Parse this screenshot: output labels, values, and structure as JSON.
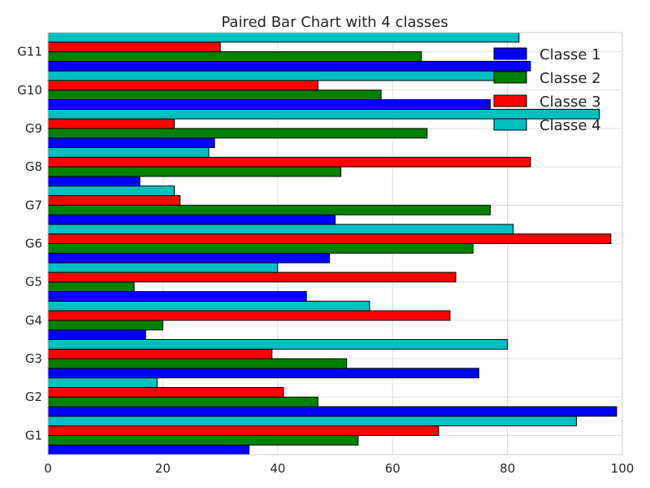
{
  "chart_data": {
    "type": "bar",
    "orientation": "horizontal",
    "title": "Paired Bar Chart with 4 classes",
    "xlabel": "",
    "ylabel": "",
    "xlim": [
      0,
      100
    ],
    "x_ticks": [
      0,
      20,
      40,
      60,
      80,
      100
    ],
    "grid": true,
    "legend_position": "top-right",
    "categories": [
      "G1",
      "G2",
      "G3",
      "G4",
      "G5",
      "G6",
      "G7",
      "G8",
      "G9",
      "G10",
      "G11"
    ],
    "series": [
      {
        "name": "Classe 1",
        "color": "#0000ff",
        "values": [
          35,
          99,
          75,
          17,
          45,
          49,
          50,
          16,
          29,
          77,
          84
        ]
      },
      {
        "name": "Classe 2",
        "color": "#008000",
        "values": [
          54,
          47,
          52,
          20,
          15,
          74,
          77,
          51,
          66,
          58,
          65
        ]
      },
      {
        "name": "Classe 3",
        "color": "#ff0000",
        "values": [
          68,
          41,
          39,
          70,
          71,
          98,
          23,
          84,
          22,
          47,
          30
        ]
      },
      {
        "name": "Classe 4",
        "color": "#00bfbf",
        "values": [
          92,
          19,
          80,
          56,
          40,
          81,
          22,
          28,
          96,
          80,
          82
        ]
      }
    ]
  }
}
